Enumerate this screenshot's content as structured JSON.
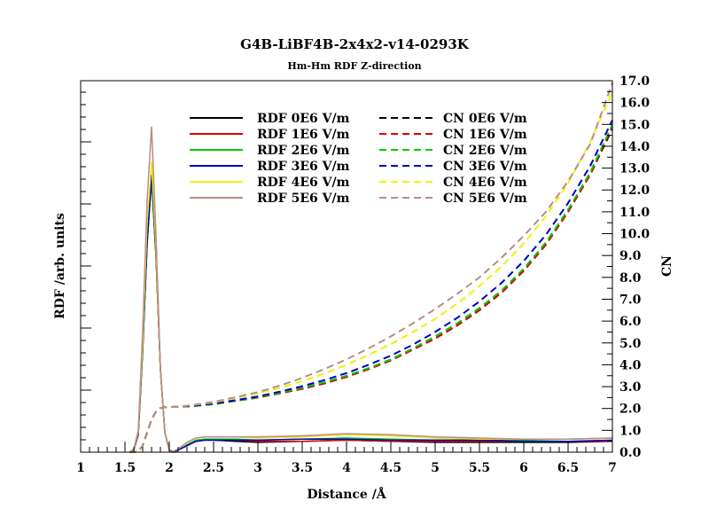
{
  "chart_data": {
    "type": "line",
    "title": "G4B-LiBF4B-2x4x2-v14-0293K",
    "subtitle": "Hm-Hm RDF Z-direction",
    "xlabel": "Distance /Å",
    "ylabel_left": "RDF /arb. units",
    "ylabel_right": "CN",
    "xlim": [
      1,
      7
    ],
    "ylim_right": [
      0,
      17
    ],
    "xticks": [
      "1",
      "1.5",
      "2",
      "2.5",
      "3",
      "3.5",
      "4",
      "4.5",
      "5",
      "5.5",
      "6",
      "6.5",
      "7"
    ],
    "yticks_right": [
      "0.0",
      "1.0",
      "2.0",
      "3.0",
      "4.0",
      "5.0",
      "6.0",
      "7.0",
      "8.0",
      "9.0",
      "10.0",
      "11.0",
      "12.0",
      "13.0",
      "14.0",
      "15.0",
      "16.0",
      "17.0"
    ],
    "grid": false,
    "legend_position": "top",
    "colors": {
      "0E6": "#000000",
      "1E6": "#e00000",
      "2E6": "#00cc00",
      "3E6": "#0000c0",
      "4E6": "#f0f000",
      "5E6": "#b88c8c"
    },
    "rdf_series": [
      {
        "name": "RDF 0E6 V/m",
        "key": "0E6",
        "x": [
          1.55,
          1.6,
          1.65,
          1.7,
          1.75,
          1.8,
          1.85,
          1.9,
          1.95,
          2.0,
          2.05,
          2.1,
          2.15,
          2.2,
          2.3,
          2.4,
          2.5,
          2.75,
          3.0,
          3.5,
          4.0,
          4.5,
          5.0,
          5.5,
          6.0,
          6.5,
          7.0
        ],
        "y": [
          0.0,
          0.12,
          0.8,
          4.7,
          9.5,
          12.5,
          9.0,
          3.8,
          0.9,
          0.1,
          0.0,
          0.1,
          0.2,
          0.3,
          0.5,
          0.55,
          0.55,
          0.5,
          0.45,
          0.5,
          0.55,
          0.5,
          0.45,
          0.45,
          0.45,
          0.45,
          0.5
        ]
      },
      {
        "name": "RDF 1E6 V/m",
        "key": "1E6",
        "x": [
          1.55,
          1.6,
          1.65,
          1.7,
          1.75,
          1.8,
          1.85,
          1.9,
          1.95,
          2.0,
          2.05,
          2.1,
          2.15,
          2.2,
          2.3,
          2.4,
          2.5,
          2.75,
          3.0,
          3.5,
          4.0,
          4.5,
          5.0,
          5.5,
          6.0,
          6.5,
          7.0
        ],
        "y": [
          0.0,
          0.12,
          0.8,
          4.7,
          9.6,
          12.6,
          9.1,
          3.8,
          0.9,
          0.1,
          0.0,
          0.1,
          0.2,
          0.3,
          0.5,
          0.55,
          0.55,
          0.55,
          0.5,
          0.5,
          0.55,
          0.5,
          0.5,
          0.5,
          0.5,
          0.5,
          0.5
        ]
      },
      {
        "name": "RDF 2E6 V/m",
        "key": "2E6",
        "x": [
          1.55,
          1.6,
          1.65,
          1.7,
          1.75,
          1.8,
          1.85,
          1.9,
          1.95,
          2.0,
          2.05,
          2.1,
          2.15,
          2.2,
          2.3,
          2.4,
          2.5,
          2.75,
          3.0,
          3.5,
          4.0,
          4.5,
          5.0,
          5.5,
          6.0,
          6.5,
          7.0
        ],
        "y": [
          0.0,
          0.12,
          0.8,
          4.6,
          9.5,
          12.6,
          9.0,
          3.8,
          0.9,
          0.1,
          0.0,
          0.1,
          0.2,
          0.35,
          0.55,
          0.6,
          0.6,
          0.6,
          0.55,
          0.6,
          0.65,
          0.6,
          0.55,
          0.55,
          0.55,
          0.6,
          0.65
        ]
      },
      {
        "name": "RDF 3E6 V/m",
        "key": "3E6",
        "x": [
          1.55,
          1.6,
          1.65,
          1.7,
          1.75,
          1.8,
          1.85,
          1.9,
          1.95,
          2.0,
          2.05,
          2.1,
          2.15,
          2.2,
          2.3,
          2.4,
          2.5,
          2.75,
          3.0,
          3.5,
          4.0,
          4.5,
          5.0,
          5.5,
          6.0,
          6.5,
          7.0
        ],
        "y": [
          0.0,
          0.12,
          0.8,
          4.7,
          9.6,
          12.7,
          9.1,
          3.8,
          0.9,
          0.1,
          0.0,
          0.1,
          0.2,
          0.3,
          0.5,
          0.55,
          0.55,
          0.55,
          0.55,
          0.6,
          0.6,
          0.55,
          0.55,
          0.55,
          0.5,
          0.5,
          0.55
        ]
      },
      {
        "name": "RDF 4E6 V/m",
        "key": "4E6",
        "x": [
          1.55,
          1.6,
          1.65,
          1.7,
          1.75,
          1.8,
          1.85,
          1.9,
          1.95,
          2.0,
          2.05,
          2.1,
          2.15,
          2.2,
          2.3,
          2.4,
          2.5,
          2.75,
          3.0,
          3.5,
          4.0,
          4.5,
          5.0,
          5.5,
          6.0,
          6.5,
          7.0
        ],
        "y": [
          0.0,
          0.14,
          0.9,
          5.0,
          10.5,
          13.3,
          9.4,
          3.8,
          0.9,
          0.1,
          0.05,
          0.15,
          0.3,
          0.45,
          0.65,
          0.7,
          0.7,
          0.7,
          0.65,
          0.7,
          0.8,
          0.75,
          0.65,
          0.6,
          0.6,
          0.6,
          0.65
        ]
      },
      {
        "name": "RDF 5E6 V/m",
        "key": "5E6",
        "x": [
          1.55,
          1.6,
          1.65,
          1.7,
          1.75,
          1.8,
          1.85,
          1.9,
          1.95,
          2.0,
          2.05,
          2.1,
          2.15,
          2.2,
          2.3,
          2.4,
          2.5,
          2.75,
          3.0,
          3.5,
          4.0,
          4.5,
          5.0,
          5.5,
          6.0,
          6.5,
          7.0
        ],
        "y": [
          0.0,
          0.15,
          1.0,
          5.6,
          11.5,
          14.9,
          10.0,
          3.9,
          0.9,
          0.1,
          0.05,
          0.15,
          0.3,
          0.45,
          0.65,
          0.7,
          0.7,
          0.7,
          0.7,
          0.75,
          0.85,
          0.8,
          0.7,
          0.65,
          0.6,
          0.6,
          0.65
        ]
      }
    ],
    "cn_series": [
      {
        "name": "CN 0E6 V/m",
        "key": "0E6",
        "x": [
          1.55,
          1.6,
          1.65,
          1.7,
          1.75,
          1.8,
          1.85,
          1.9,
          1.95,
          2.0,
          2.1,
          2.25,
          2.5,
          2.75,
          3.0,
          3.25,
          3.5,
          3.75,
          4.0,
          4.25,
          4.5,
          4.75,
          5.0,
          5.25,
          5.5,
          5.75,
          6.0,
          6.25,
          6.5,
          6.75,
          7.0
        ],
        "y": [
          0.0,
          0.0,
          0.05,
          0.3,
          0.9,
          1.5,
          1.85,
          2.02,
          2.06,
          2.07,
          2.08,
          2.1,
          2.2,
          2.35,
          2.5,
          2.7,
          2.9,
          3.15,
          3.45,
          3.8,
          4.2,
          4.7,
          5.2,
          5.8,
          6.5,
          7.3,
          8.3,
          9.5,
          11.0,
          12.7,
          14.8
        ]
      },
      {
        "name": "CN 1E6 V/m",
        "key": "1E6",
        "x": [
          1.55,
          1.6,
          1.65,
          1.7,
          1.75,
          1.8,
          1.85,
          1.9,
          1.95,
          2.0,
          2.1,
          2.25,
          2.5,
          2.75,
          3.0,
          3.25,
          3.5,
          3.75,
          4.0,
          4.25,
          4.5,
          4.75,
          5.0,
          5.25,
          5.5,
          5.75,
          6.0,
          6.25,
          6.5,
          6.75,
          7.0
        ],
        "y": [
          0.0,
          0.0,
          0.05,
          0.3,
          0.9,
          1.5,
          1.85,
          2.02,
          2.06,
          2.07,
          2.08,
          2.1,
          2.2,
          2.35,
          2.5,
          2.7,
          2.9,
          3.15,
          3.45,
          3.8,
          4.2,
          4.7,
          5.2,
          5.8,
          6.5,
          7.3,
          8.3,
          9.5,
          11.0,
          12.7,
          14.9
        ]
      },
      {
        "name": "CN 2E6 V/m",
        "key": "2E6",
        "x": [
          1.55,
          1.6,
          1.65,
          1.7,
          1.75,
          1.8,
          1.85,
          1.9,
          1.95,
          2.0,
          2.1,
          2.25,
          2.5,
          2.75,
          3.0,
          3.25,
          3.5,
          3.75,
          4.0,
          4.25,
          4.5,
          4.75,
          5.0,
          5.25,
          5.5,
          5.75,
          6.0,
          6.25,
          6.5,
          6.75,
          7.0
        ],
        "y": [
          0.0,
          0.0,
          0.05,
          0.3,
          0.9,
          1.5,
          1.85,
          2.02,
          2.06,
          2.07,
          2.08,
          2.1,
          2.2,
          2.35,
          2.52,
          2.72,
          2.95,
          3.2,
          3.5,
          3.85,
          4.25,
          4.75,
          5.3,
          5.9,
          6.6,
          7.4,
          8.4,
          9.6,
          11.1,
          12.8,
          15.0
        ]
      },
      {
        "name": "CN 3E6 V/m",
        "key": "3E6",
        "x": [
          1.55,
          1.6,
          1.65,
          1.7,
          1.75,
          1.8,
          1.85,
          1.9,
          1.95,
          2.0,
          2.1,
          2.25,
          2.5,
          2.75,
          3.0,
          3.25,
          3.5,
          3.75,
          4.0,
          4.25,
          4.5,
          4.75,
          5.0,
          5.25,
          5.5,
          5.75,
          6.0,
          6.25,
          6.5,
          6.75,
          7.0
        ],
        "y": [
          0.0,
          0.0,
          0.05,
          0.3,
          0.9,
          1.5,
          1.85,
          2.02,
          2.06,
          2.07,
          2.08,
          2.12,
          2.22,
          2.38,
          2.55,
          2.77,
          3.02,
          3.3,
          3.62,
          4.0,
          4.42,
          4.92,
          5.5,
          6.15,
          6.9,
          7.75,
          8.75,
          9.95,
          11.4,
          13.1,
          15.2
        ]
      },
      {
        "name": "CN 4E6 V/m",
        "key": "4E6",
        "x": [
          1.55,
          1.6,
          1.65,
          1.7,
          1.75,
          1.8,
          1.85,
          1.9,
          1.95,
          2.0,
          2.1,
          2.25,
          2.5,
          2.75,
          3.0,
          3.25,
          3.5,
          3.75,
          4.0,
          4.25,
          4.5,
          4.75,
          5.0,
          5.25,
          5.5,
          5.75,
          6.0,
          6.25,
          6.5,
          6.75,
          7.0
        ],
        "y": [
          0.0,
          0.0,
          0.05,
          0.3,
          0.9,
          1.5,
          1.85,
          2.02,
          2.06,
          2.07,
          2.08,
          2.15,
          2.28,
          2.48,
          2.7,
          2.95,
          3.25,
          3.6,
          4.0,
          4.45,
          4.95,
          5.5,
          6.1,
          6.8,
          7.6,
          8.5,
          9.55,
          10.8,
          12.3,
          14.2,
          16.5
        ]
      },
      {
        "name": "CN 5E6 V/m",
        "key": "5E6",
        "x": [
          1.55,
          1.6,
          1.65,
          1.7,
          1.75,
          1.8,
          1.85,
          1.9,
          1.95,
          2.0,
          2.1,
          2.25,
          2.5,
          2.75,
          3.0,
          3.25,
          3.5,
          3.75,
          4.0,
          4.25,
          4.5,
          4.75,
          5.0,
          5.25,
          5.5,
          5.75,
          6.0,
          6.25,
          6.5,
          6.75,
          7.0
        ],
        "y": [
          0.0,
          0.0,
          0.05,
          0.3,
          0.9,
          1.5,
          1.85,
          2.02,
          2.06,
          2.07,
          2.08,
          2.15,
          2.3,
          2.52,
          2.75,
          3.05,
          3.4,
          3.8,
          4.25,
          4.75,
          5.3,
          5.9,
          6.55,
          7.25,
          8.0,
          8.9,
          9.9,
          11.0,
          12.4,
          14.1,
          16.9
        ]
      }
    ]
  }
}
